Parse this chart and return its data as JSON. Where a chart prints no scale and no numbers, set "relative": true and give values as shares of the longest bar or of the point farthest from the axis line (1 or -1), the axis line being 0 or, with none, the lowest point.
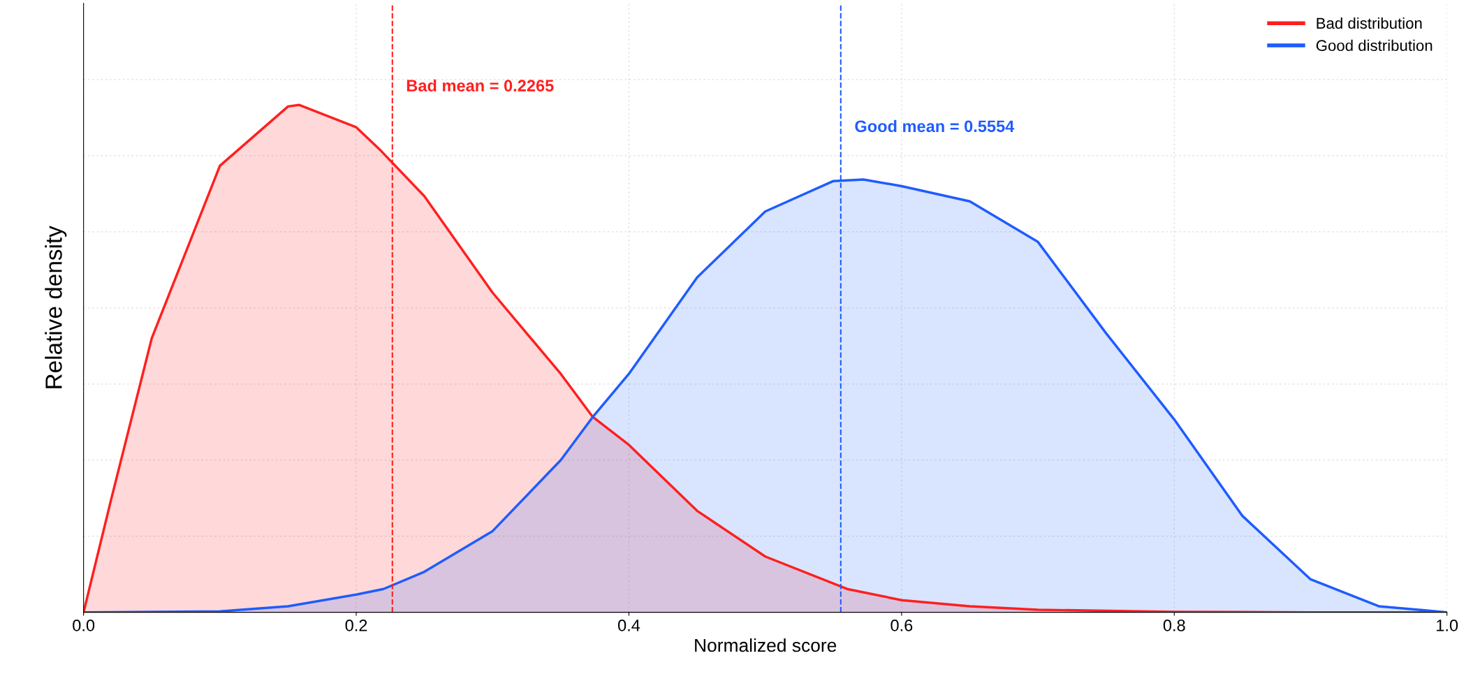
{
  "chart_data": {
    "type": "area",
    "relative": true,
    "xlabel": "Normalized score",
    "ylabel": "Relative density",
    "xlim": [
      0,
      1
    ],
    "xticks": [
      {
        "value": 0,
        "label": "0.0"
      },
      {
        "value": 0.2,
        "label": "0.2"
      },
      {
        "value": 0.4,
        "label": "0.4"
      },
      {
        "value": 0.6,
        "label": "0.6"
      },
      {
        "value": 0.8,
        "label": "0.8"
      },
      {
        "value": 1,
        "label": "1.0"
      }
    ],
    "grid": true,
    "legend": "top right",
    "series": [
      {
        "name": "Bad distribution",
        "color": "#ff1f1f",
        "x": [
          0,
          0.02,
          0.05,
          0.1,
          0.15,
          0.158,
          0.2,
          0.218,
          0.25,
          0.3,
          0.35,
          0.3735,
          0.4,
          0.45,
          0.5,
          0.56,
          0.6,
          0.65,
          0.7,
          0.8,
          0.9,
          1
        ],
        "values": [
          0,
          0.22,
          0.54,
          0.88,
          0.997,
          1,
          0.956,
          0.91,
          0.82,
          0.63,
          0.47,
          0.385,
          0.33,
          0.2,
          0.11,
          0.046,
          0.024,
          0.012,
          0.005,
          0.001,
          0,
          0
        ]
      },
      {
        "name": "Good distribution",
        "color": "#1f5cff",
        "x": [
          0,
          0.1,
          0.15,
          0.2,
          0.22,
          0.25,
          0.3,
          0.35,
          0.3735,
          0.4,
          0.45,
          0.5,
          0.55,
          0.572,
          0.6,
          0.65,
          0.7,
          0.75,
          0.8,
          0.85,
          0.9,
          0.95,
          1
        ],
        "values": [
          0,
          0.002,
          0.012,
          0.035,
          0.046,
          0.08,
          0.16,
          0.3,
          0.385,
          0.47,
          0.66,
          0.79,
          0.85,
          0.853,
          0.84,
          0.81,
          0.73,
          0.55,
          0.38,
          0.19,
          0.065,
          0.012,
          0
        ]
      }
    ],
    "ref_lines": [
      {
        "axis": "x",
        "value": 0.2265,
        "label": "Bad mean = 0.2265",
        "color": "#ff1f1f",
        "line_style": "dashed"
      },
      {
        "axis": "x",
        "value": 0.5554,
        "label": "Good mean = 0.5554",
        "color": "#1f5cff",
        "line_style": "dashed"
      }
    ]
  }
}
